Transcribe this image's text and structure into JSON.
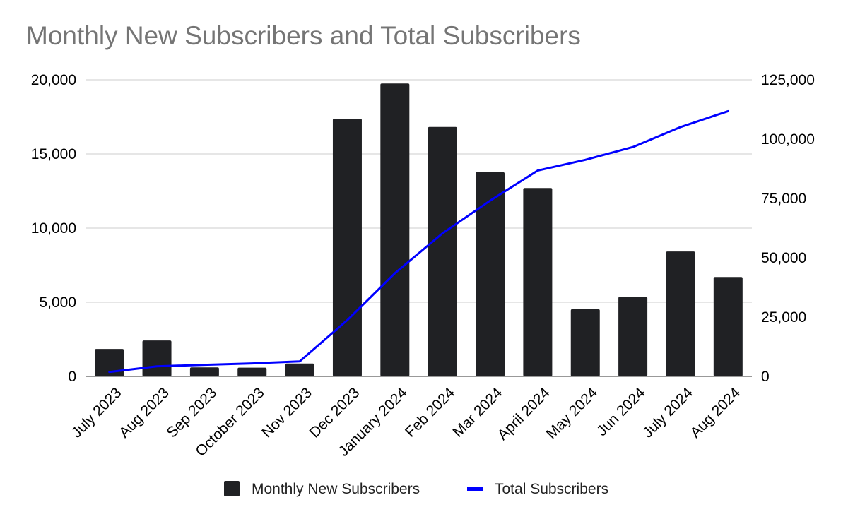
{
  "chart_data": {
    "type": "bar",
    "title": "Monthly New Subscribers and Total Subscribers",
    "xlabel": "",
    "ylabel": "",
    "categories": [
      "July 2023",
      "Aug 2023",
      "Sep 2023",
      "October 2023",
      "Nov 2023",
      "Dec 2023",
      "January 2024",
      "Feb 2024",
      "Mar 2024",
      "April 2024",
      "May 2024",
      "Jun 2024",
      "July 2024",
      "Aug 2024"
    ],
    "series": [
      {
        "name": "Monthly New Subscribers",
        "type": "bar",
        "axis": "left",
        "color": "#202124",
        "values": [
          1850,
          2420,
          610,
          590,
          870,
          17380,
          19750,
          16820,
          13770,
          12700,
          4530,
          5370,
          8420,
          6700
        ]
      },
      {
        "name": "Total Subscribers",
        "type": "line",
        "axis": "right",
        "color": "#0000ff",
        "values": [
          1850,
          4270,
          4880,
          5470,
          6340,
          23720,
          43470,
          60290,
          74060,
          86760,
          91290,
          96660,
          105080,
          111780
        ]
      }
    ],
    "ylim": [
      0,
      20000
    ],
    "ylim_right": [
      0,
      125000
    ],
    "yticks": [
      "0",
      "5,000",
      "10,000",
      "15,000",
      "20,000"
    ],
    "yticks_right": [
      "0",
      "25,000",
      "50,000",
      "75,000",
      "100,000",
      "125,000"
    ],
    "grid": true,
    "legend_position": "bottom"
  }
}
